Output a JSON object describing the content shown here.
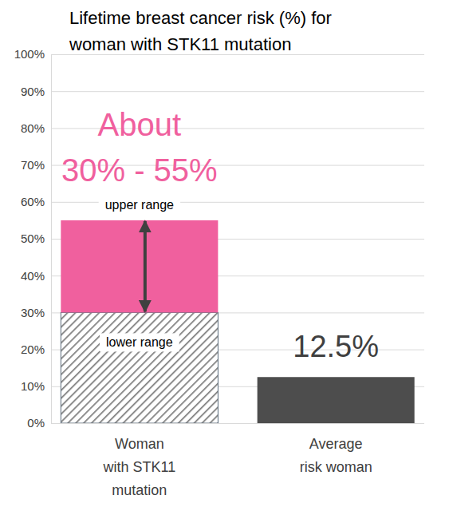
{
  "chart_data": {
    "type": "bar",
    "title": "Lifetime breast cancer risk (%) for\nwoman with STK11 mutation",
    "categories": [
      "Woman\nwith STK11\nmutation",
      "Average\nrisk woman"
    ],
    "stacked": true,
    "series": [
      {
        "name": "lower range",
        "color": "#7f7f7f",
        "values": [
          30,
          null
        ]
      },
      {
        "name": "upper range",
        "color": "#f0609e",
        "values": [
          25,
          null
        ]
      },
      {
        "color": "#4d4d4d",
        "values": [
          null,
          12.5
        ],
        "data_labels": true,
        "value_labels": [
          null,
          "12.5%"
        ]
      }
    ],
    "annotations": [
      "About\n30% - 55%"
    ],
    "ylim": [
      0,
      100
    ],
    "yticks": [
      {
        "value": 0,
        "label": "0%"
      },
      {
        "value": 10,
        "label": "10%"
      },
      {
        "value": 20,
        "label": "20%"
      },
      {
        "value": 30,
        "label": "30%"
      },
      {
        "value": 40,
        "label": "40%"
      },
      {
        "value": 50,
        "label": "50%"
      },
      {
        "value": 60,
        "label": "60%"
      },
      {
        "value": 70,
        "label": "70%"
      },
      {
        "value": 80,
        "label": "80%"
      },
      {
        "value": 90,
        "label": "90%"
      },
      {
        "value": 100,
        "label": "100%"
      }
    ],
    "grid": true
  }
}
